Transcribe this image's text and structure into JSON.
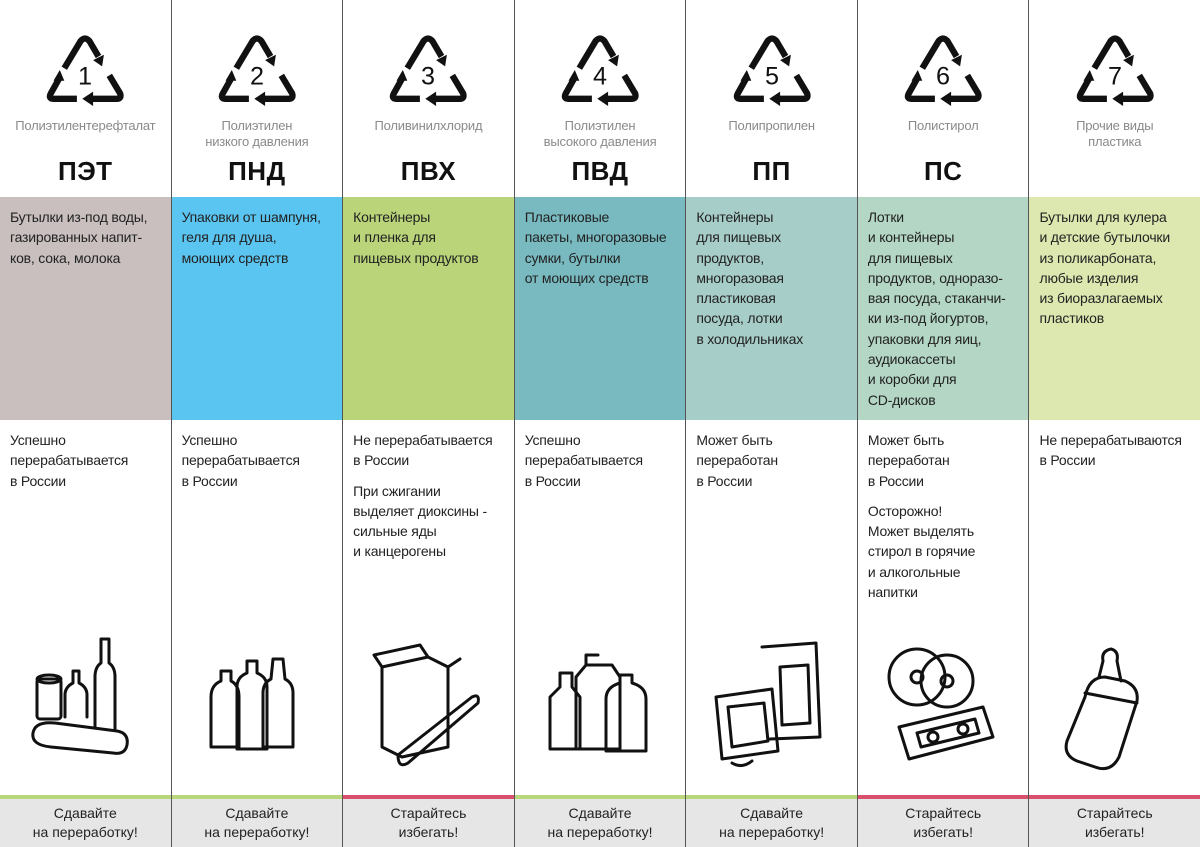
{
  "columns": [
    {
      "number": "1",
      "chemical": "Полиэтилентерефталат",
      "abbr": "ПЭТ",
      "band_color": "#c9bfbf",
      "uses": "Бутылки из-под воды,\nгазированных напит-\nков, сока, молока",
      "notes": [
        "Успешно\nперерабатывается\nв России"
      ],
      "illustration": "bottles-icon",
      "rule_color": "#b9d67d",
      "advice": "Сдавайте\nна переработку!"
    },
    {
      "number": "2",
      "chemical": "Полиэтилен\nнизкого давления",
      "abbr": "ПНД",
      "band_color": "#5bc5f2",
      "uses": "Упаковки от шампуня,\nгеля для душа,\nмоющих средств",
      "notes": [
        "Успешно\nперерабатывается\nв России"
      ],
      "illustration": "shampoo-bottles-icon",
      "rule_color": "#b9d67d",
      "advice": "Сдавайте\nна переработку!"
    },
    {
      "number": "3",
      "chemical": "Поливинилхлорид",
      "abbr": "ПВХ",
      "band_color": "#bad47a",
      "uses": "Контейнеры\nи пленка для\nпищевых продуктов",
      "notes": [
        "Не перерабатывается\nв России",
        "При сжигании\nвыделяет диоксины -\nсильные яды\nи канцерогены"
      ],
      "illustration": "box-and-film-icon",
      "rule_color": "#d9506e",
      "advice": "Старайтесь\nизбегать!"
    },
    {
      "number": "4",
      "chemical": "Полиэтилен\nвысокого давления",
      "abbr": "ПВД",
      "band_color": "#78bac0",
      "uses": "Пластиковые\nпакеты, многоразовые\nсумки, бутылки\nот моющих средств",
      "notes": [
        "Успешно\nперерабатывается\nв России"
      ],
      "illustration": "detergent-bottles-icon",
      "rule_color": "#b9d67d",
      "advice": "Сдавайте\nна переработку!"
    },
    {
      "number": "5",
      "chemical": "Полипропилен",
      "abbr": "ПП",
      "band_color": "#a7cdc8",
      "uses": "Контейнеры\nдля пищевых\nпродуктов,\nмногоразовая\nпластиковая\nпосуда, лотки\nв холодильниках",
      "notes": [
        "Может быть\nпереработан\nв России"
      ],
      "illustration": "fridge-and-tv-icon",
      "rule_color": "#b9d67d",
      "advice": "Сдавайте\nна переработку!"
    },
    {
      "number": "6",
      "chemical": "Полистирол",
      "abbr": "ПС",
      "band_color": "#b3d6c5",
      "uses": "Лотки\nи контейнеры\nдля пищевых\nпродуктов, одноразо-\nвая посуда, стаканчи-\nки из-под йогуртов,\nупаковки для яиц,\nаудиокассеты\nи коробки для\nCD-дисков",
      "notes": [
        "Может быть\nпереработан\nв России",
        "Осторожно!\nМожет выделять\nстирол в горячие\nи алкогольные\nнапитки"
      ],
      "illustration": "cd-and-cassette-icon",
      "rule_color": "#d9506e",
      "advice": "Старайтесь\nизбегать!"
    },
    {
      "number": "7",
      "chemical": "Прочие виды\nпластика",
      "abbr": "",
      "band_color": "#dce8b0",
      "uses": "Бутылки для кулера\nи детские бутылочки\nиз поликарбоната,\nлюбые изделия\nиз биоразлагаемых\nпластиков",
      "notes": [
        "Не перерабатываются\nв России"
      ],
      "illustration": "baby-bottle-icon",
      "rule_color": "#d9506e",
      "advice": "Старайтесь\nизбегать!"
    }
  ]
}
